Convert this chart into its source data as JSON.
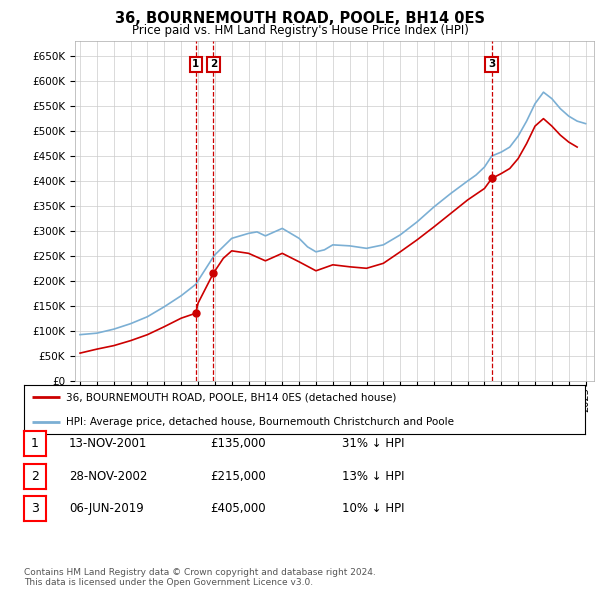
{
  "title": "36, BOURNEMOUTH ROAD, POOLE, BH14 0ES",
  "subtitle": "Price paid vs. HM Land Registry's House Price Index (HPI)",
  "ylim": [
    0,
    650000
  ],
  "xlim_start": 1994.7,
  "xlim_end": 2025.5,
  "hpi_color": "#7bafd4",
  "price_color": "#cc0000",
  "transactions": [
    {
      "date": 2001.87,
      "price": 135000,
      "label": "1"
    },
    {
      "date": 2002.91,
      "price": 215000,
      "label": "2"
    },
    {
      "date": 2019.43,
      "price": 405000,
      "label": "3"
    }
  ],
  "vline_dates": [
    2001.87,
    2002.91,
    2019.43
  ],
  "legend_entries": [
    "36, BOURNEMOUTH ROAD, POOLE, BH14 0ES (detached house)",
    "HPI: Average price, detached house, Bournemouth Christchurch and Poole"
  ],
  "table_rows": [
    {
      "num": "1",
      "date": "13-NOV-2001",
      "price": "£135,000",
      "pct": "31% ↓ HPI"
    },
    {
      "num": "2",
      "date": "28-NOV-2002",
      "price": "£215,000",
      "pct": "13% ↓ HPI"
    },
    {
      "num": "3",
      "date": "06-JUN-2019",
      "price": "£405,000",
      "pct": "10% ↓ HPI"
    }
  ],
  "footer": "Contains HM Land Registry data © Crown copyright and database right 2024.\nThis data is licensed under the Open Government Licence v3.0.",
  "background_color": "#ffffff",
  "plot_bg_color": "#ffffff",
  "grid_color": "#cccccc",
  "hpi_points": [
    [
      1995.0,
      92000
    ],
    [
      1996.0,
      95000
    ],
    [
      1997.0,
      103000
    ],
    [
      1998.0,
      114000
    ],
    [
      1999.0,
      128000
    ],
    [
      2000.0,
      148000
    ],
    [
      2001.0,
      170000
    ],
    [
      2001.87,
      193000
    ],
    [
      2002.0,
      200000
    ],
    [
      2002.91,
      248000
    ],
    [
      2003.0,
      252000
    ],
    [
      2004.0,
      285000
    ],
    [
      2005.0,
      295000
    ],
    [
      2005.5,
      298000
    ],
    [
      2006.0,
      290000
    ],
    [
      2007.0,
      305000
    ],
    [
      2008.0,
      285000
    ],
    [
      2008.5,
      268000
    ],
    [
      2009.0,
      258000
    ],
    [
      2009.5,
      262000
    ],
    [
      2010.0,
      272000
    ],
    [
      2011.0,
      270000
    ],
    [
      2012.0,
      265000
    ],
    [
      2013.0,
      272000
    ],
    [
      2014.0,
      292000
    ],
    [
      2015.0,
      318000
    ],
    [
      2016.0,
      348000
    ],
    [
      2017.0,
      375000
    ],
    [
      2018.0,
      400000
    ],
    [
      2018.5,
      412000
    ],
    [
      2019.0,
      428000
    ],
    [
      2019.43,
      450000
    ],
    [
      2020.0,
      458000
    ],
    [
      2020.5,
      468000
    ],
    [
      2021.0,
      490000
    ],
    [
      2021.5,
      520000
    ],
    [
      2022.0,
      555000
    ],
    [
      2022.5,
      578000
    ],
    [
      2023.0,
      565000
    ],
    [
      2023.5,
      545000
    ],
    [
      2024.0,
      530000
    ],
    [
      2024.5,
      520000
    ],
    [
      2025.0,
      515000
    ]
  ],
  "price_points": [
    [
      1995.0,
      55000
    ],
    [
      1996.0,
      63000
    ],
    [
      1997.0,
      70000
    ],
    [
      1998.0,
      80000
    ],
    [
      1999.0,
      92000
    ],
    [
      2000.0,
      108000
    ],
    [
      2001.0,
      125000
    ],
    [
      2001.87,
      135000
    ],
    [
      2002.0,
      155000
    ],
    [
      2002.91,
      215000
    ],
    [
      2003.5,
      245000
    ],
    [
      2004.0,
      260000
    ],
    [
      2005.0,
      255000
    ],
    [
      2006.0,
      240000
    ],
    [
      2007.0,
      255000
    ],
    [
      2008.0,
      238000
    ],
    [
      2009.0,
      220000
    ],
    [
      2010.0,
      232000
    ],
    [
      2011.0,
      228000
    ],
    [
      2012.0,
      225000
    ],
    [
      2013.0,
      235000
    ],
    [
      2014.0,
      258000
    ],
    [
      2015.0,
      282000
    ],
    [
      2016.0,
      308000
    ],
    [
      2017.0,
      335000
    ],
    [
      2018.0,
      362000
    ],
    [
      2019.0,
      385000
    ],
    [
      2019.43,
      405000
    ],
    [
      2020.0,
      415000
    ],
    [
      2020.5,
      425000
    ],
    [
      2021.0,
      445000
    ],
    [
      2021.5,
      475000
    ],
    [
      2022.0,
      510000
    ],
    [
      2022.5,
      525000
    ],
    [
      2023.0,
      510000
    ],
    [
      2023.5,
      492000
    ],
    [
      2024.0,
      478000
    ],
    [
      2024.5,
      468000
    ]
  ]
}
